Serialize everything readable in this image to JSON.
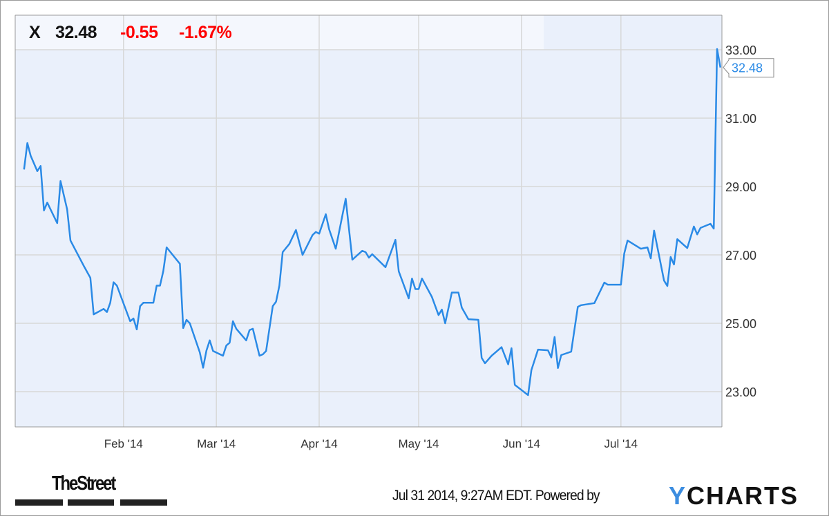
{
  "header": {
    "ticker": "X",
    "price": "32.48",
    "change": "-0.55",
    "change_pct": "-1.67%"
  },
  "colors": {
    "line": "#2a8ae6",
    "negative": "#ff0000",
    "plot_bg": "#eaf0fb",
    "grid": "#d8d8d8"
  },
  "chart_data": {
    "type": "line",
    "title": "",
    "xlabel": "",
    "ylabel": "",
    "x_tick_labels": [
      "Feb '14",
      "Mar '14",
      "Apr '14",
      "May '14",
      "Jun '14",
      "Jul '14"
    ],
    "x_tick_dates": [
      "2014-02-01",
      "2014-03-01",
      "2014-04-01",
      "2014-05-01",
      "2014-06-01",
      "2014-07-01"
    ],
    "y_tick_labels": [
      "33.00",
      "31.00",
      "29.00",
      "27.00",
      "25.00",
      "23.00"
    ],
    "y_ticks": [
      33,
      31,
      29,
      27,
      25,
      23
    ],
    "ylim": [
      22.1,
      34.0
    ],
    "xlim": [
      "2014-01-01",
      "2014-07-31"
    ],
    "y_axis_position": "right",
    "grid": true,
    "last_value_label": "32.48",
    "series": [
      {
        "points": [
          [
            "2014-01-02",
            29.5
          ],
          [
            "2014-01-03",
            30.27
          ],
          [
            "2014-01-04",
            29.9
          ],
          [
            "2014-01-06",
            29.45
          ],
          [
            "2014-01-07",
            29.6
          ],
          [
            "2014-01-08",
            28.3
          ],
          [
            "2014-01-09",
            28.53
          ],
          [
            "2014-01-12",
            27.93
          ],
          [
            "2014-01-13",
            29.16
          ],
          [
            "2014-01-15",
            28.33
          ],
          [
            "2014-01-16",
            27.42
          ],
          [
            "2014-01-20",
            26.68
          ],
          [
            "2014-01-22",
            26.33
          ],
          [
            "2014-01-23",
            25.26
          ],
          [
            "2014-01-26",
            25.42
          ],
          [
            "2014-01-27",
            25.33
          ],
          [
            "2014-01-28",
            25.6
          ],
          [
            "2014-01-29",
            26.2
          ],
          [
            "2014-01-30",
            26.1
          ],
          [
            "2014-02-03",
            25.06
          ],
          [
            "2014-02-04",
            25.14
          ],
          [
            "2014-02-05",
            24.82
          ],
          [
            "2014-02-06",
            25.5
          ],
          [
            "2014-02-07",
            25.6
          ],
          [
            "2014-02-10",
            25.6
          ],
          [
            "2014-02-11",
            26.1
          ],
          [
            "2014-02-12",
            26.1
          ],
          [
            "2014-02-13",
            26.53
          ],
          [
            "2014-02-14",
            27.22
          ],
          [
            "2014-02-18",
            26.74
          ],
          [
            "2014-02-19",
            24.86
          ],
          [
            "2014-02-20",
            25.1
          ],
          [
            "2014-02-21",
            25.0
          ],
          [
            "2014-02-24",
            24.15
          ],
          [
            "2014-02-25",
            23.7
          ],
          [
            "2014-02-26",
            24.2
          ],
          [
            "2014-02-27",
            24.5
          ],
          [
            "2014-02-28",
            24.19
          ],
          [
            "2014-03-03",
            24.05
          ],
          [
            "2014-03-04",
            24.35
          ],
          [
            "2014-03-05",
            24.43
          ],
          [
            "2014-03-06",
            25.06
          ],
          [
            "2014-03-07",
            24.84
          ],
          [
            "2014-03-10",
            24.5
          ],
          [
            "2014-03-11",
            24.8
          ],
          [
            "2014-03-12",
            24.84
          ],
          [
            "2014-03-14",
            24.05
          ],
          [
            "2014-03-15",
            24.09
          ],
          [
            "2014-03-16",
            24.19
          ],
          [
            "2014-03-18",
            25.5
          ],
          [
            "2014-03-19",
            25.63
          ],
          [
            "2014-03-20",
            26.1
          ],
          [
            "2014-03-21",
            27.08
          ],
          [
            "2014-03-23",
            27.32
          ],
          [
            "2014-03-25",
            27.73
          ],
          [
            "2014-03-27",
            27.0
          ],
          [
            "2014-03-30",
            27.58
          ],
          [
            "2014-03-31",
            27.67
          ],
          [
            "2014-04-01",
            27.62
          ],
          [
            "2014-04-03",
            28.19
          ],
          [
            "2014-04-04",
            27.75
          ],
          [
            "2014-04-06",
            27.18
          ],
          [
            "2014-04-09",
            28.64
          ],
          [
            "2014-04-11",
            26.86
          ],
          [
            "2014-04-14",
            27.12
          ],
          [
            "2014-04-15",
            27.08
          ],
          [
            "2014-04-16",
            26.92
          ],
          [
            "2014-04-17",
            27.02
          ],
          [
            "2014-04-21",
            26.64
          ],
          [
            "2014-04-24",
            27.44
          ],
          [
            "2014-04-25",
            26.52
          ],
          [
            "2014-04-28",
            25.73
          ],
          [
            "2014-04-29",
            26.31
          ],
          [
            "2014-04-30",
            26.0
          ],
          [
            "2014-05-01",
            26.0
          ],
          [
            "2014-05-02",
            26.31
          ],
          [
            "2014-05-05",
            25.77
          ],
          [
            "2014-05-07",
            25.24
          ],
          [
            "2014-05-08",
            25.4
          ],
          [
            "2014-05-09",
            25.0
          ],
          [
            "2014-05-11",
            25.9
          ],
          [
            "2014-05-13",
            25.9
          ],
          [
            "2014-05-14",
            25.46
          ],
          [
            "2014-05-16",
            25.12
          ],
          [
            "2014-05-19",
            25.1
          ],
          [
            "2014-05-20",
            23.99
          ],
          [
            "2014-05-21",
            23.83
          ],
          [
            "2014-05-23",
            24.05
          ],
          [
            "2014-05-26",
            24.3
          ],
          [
            "2014-05-28",
            23.8
          ],
          [
            "2014-05-29",
            24.27
          ],
          [
            "2014-05-30",
            23.2
          ],
          [
            "2014-06-03",
            22.9
          ],
          [
            "2014-06-04",
            23.63
          ],
          [
            "2014-06-06",
            24.23
          ],
          [
            "2014-06-09",
            24.21
          ],
          [
            "2014-06-10",
            24.0
          ],
          [
            "2014-06-11",
            24.6
          ],
          [
            "2014-06-12",
            23.69
          ],
          [
            "2014-06-13",
            24.07
          ],
          [
            "2014-06-16",
            24.17
          ],
          [
            "2014-06-18",
            25.48
          ],
          [
            "2014-06-19",
            25.53
          ],
          [
            "2014-06-23",
            25.59
          ],
          [
            "2014-06-26",
            26.19
          ],
          [
            "2014-06-27",
            26.13
          ],
          [
            "2014-07-01",
            26.13
          ],
          [
            "2014-07-02",
            27.04
          ],
          [
            "2014-07-03",
            27.42
          ],
          [
            "2014-07-07",
            27.18
          ],
          [
            "2014-07-09",
            27.22
          ],
          [
            "2014-07-10",
            26.9
          ],
          [
            "2014-07-11",
            27.71
          ],
          [
            "2014-07-14",
            26.25
          ],
          [
            "2014-07-15",
            26.09
          ],
          [
            "2014-07-16",
            26.94
          ],
          [
            "2014-07-17",
            26.72
          ],
          [
            "2014-07-18",
            27.46
          ],
          [
            "2014-07-21",
            27.2
          ],
          [
            "2014-07-23",
            27.83
          ],
          [
            "2014-07-24",
            27.6
          ],
          [
            "2014-07-25",
            27.79
          ],
          [
            "2014-07-28",
            27.91
          ],
          [
            "2014-07-29",
            27.77
          ],
          [
            "2014-07-30",
            33.02
          ],
          [
            "2014-07-31",
            32.48
          ]
        ]
      }
    ]
  },
  "footer": {
    "publisher_logo": "TheStreet",
    "timestamp": "Jul 31 2014, 9:27AM EDT.",
    "powered_by": "Powered by",
    "brand_logo_first": "Y",
    "brand_logo_rest": "CHARTS"
  }
}
